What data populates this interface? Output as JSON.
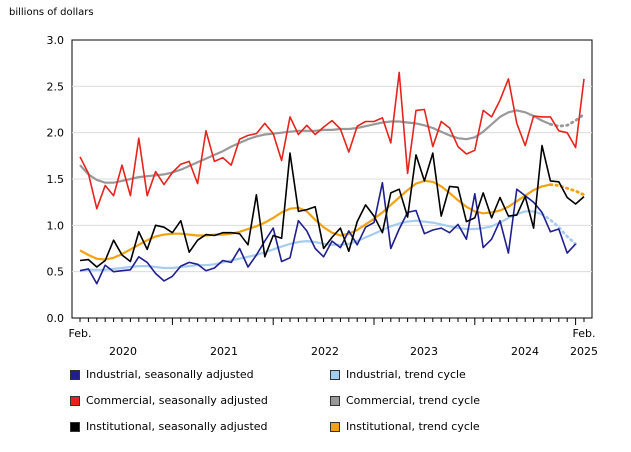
{
  "chart_data": {
    "type": "line",
    "ylabel": "billions of dollars",
    "ylim": [
      0.0,
      3.0
    ],
    "yticks": [
      "0.0",
      "0.5",
      "1.0",
      "1.5",
      "2.0",
      "2.5",
      "3.0"
    ],
    "x_start": "Feb.",
    "x_end": "Feb.",
    "year_labels": [
      "2020",
      "2021",
      "2022",
      "2023",
      "2024",
      "2025"
    ],
    "grid": true,
    "legend_position": "bottom",
    "series": [
      {
        "name": "Industrial, seasonally adjusted",
        "color": "#1f1f8f",
        "style": "solid",
        "values": [
          0.51,
          0.53,
          0.37,
          0.57,
          0.5,
          0.51,
          0.52,
          0.66,
          0.6,
          0.48,
          0.4,
          0.45,
          0.56,
          0.6,
          0.58,
          0.51,
          0.54,
          0.62,
          0.6,
          0.75,
          0.55,
          0.68,
          0.83,
          0.97,
          0.61,
          0.65,
          1.05,
          0.94,
          0.75,
          0.66,
          0.83,
          0.76,
          0.94,
          0.79,
          0.98,
          1.03,
          1.46,
          0.75,
          0.96,
          1.14,
          1.16,
          0.91,
          0.95,
          0.97,
          0.92,
          1.01,
          0.85,
          1.34,
          0.76,
          0.85,
          1.05,
          0.7,
          1.39,
          1.32,
          1.25,
          1.14,
          0.93,
          0.96,
          0.7,
          0.8
        ]
      },
      {
        "name": "Industrial, trend cycle",
        "color": "#a6ccf0",
        "style": "solid",
        "values": [
          0.51,
          0.52,
          0.52,
          0.52,
          0.53,
          0.54,
          0.55,
          0.56,
          0.56,
          0.55,
          0.54,
          0.54,
          0.55,
          0.56,
          0.57,
          0.57,
          0.58,
          0.6,
          0.62,
          0.64,
          0.66,
          0.68,
          0.71,
          0.74,
          0.77,
          0.8,
          0.82,
          0.83,
          0.82,
          0.8,
          0.79,
          0.79,
          0.8,
          0.83,
          0.87,
          0.91,
          0.95,
          0.99,
          1.02,
          1.04,
          1.05,
          1.04,
          1.03,
          1.01,
          0.99,
          0.97,
          0.96,
          0.96,
          0.97,
          0.99,
          1.03,
          1.08,
          1.12,
          1.15,
          1.15,
          1.12,
          1.06,
          0.98,
          0.88,
          0.8
        ],
        "dotted_from_index": 55
      },
      {
        "name": "Commercial, seasonally adjusted",
        "color": "#e8231c",
        "style": "solid",
        "values": [
          1.74,
          1.56,
          1.18,
          1.43,
          1.32,
          1.65,
          1.32,
          1.94,
          1.32,
          1.58,
          1.44,
          1.57,
          1.66,
          1.69,
          1.45,
          2.02,
          1.69,
          1.73,
          1.65,
          1.93,
          1.97,
          1.99,
          2.1,
          1.99,
          1.7,
          2.17,
          1.98,
          2.08,
          1.98,
          2.06,
          2.13,
          2.04,
          1.79,
          2.07,
          2.12,
          2.12,
          2.16,
          1.89,
          2.65,
          1.56,
          2.24,
          2.25,
          1.85,
          2.12,
          2.05,
          1.85,
          1.77,
          1.81,
          2.24,
          2.17,
          2.35,
          2.58,
          2.1,
          1.86,
          2.18,
          2.17,
          2.17,
          2.02,
          2.0,
          1.84,
          2.58
        ]
      },
      {
        "name": "Commercial, trend cycle",
        "color": "#999999",
        "style": "solid",
        "values": [
          1.65,
          1.55,
          1.49,
          1.46,
          1.46,
          1.48,
          1.5,
          1.52,
          1.53,
          1.54,
          1.55,
          1.57,
          1.6,
          1.64,
          1.68,
          1.72,
          1.76,
          1.8,
          1.85,
          1.89,
          1.93,
          1.96,
          1.98,
          1.99,
          2.0,
          2.01,
          2.02,
          2.02,
          2.02,
          2.03,
          2.03,
          2.04,
          2.04,
          2.05,
          2.07,
          2.09,
          2.11,
          2.12,
          2.12,
          2.11,
          2.1,
          2.08,
          2.05,
          2.01,
          1.97,
          1.94,
          1.93,
          1.95,
          2.01,
          2.09,
          2.17,
          2.22,
          2.24,
          2.22,
          2.18,
          2.13,
          2.09,
          2.07,
          2.08,
          2.13,
          2.2
        ],
        "dotted_from_index": 56
      },
      {
        "name": "Institutional, seasonally adjusted",
        "color": "#000000",
        "style": "solid",
        "values": [
          0.62,
          0.63,
          0.55,
          0.62,
          0.84,
          0.68,
          0.61,
          0.93,
          0.74,
          1.0,
          0.98,
          0.92,
          1.05,
          0.71,
          0.84,
          0.9,
          0.89,
          0.92,
          0.92,
          0.91,
          0.79,
          1.33,
          0.66,
          0.89,
          0.86,
          1.78,
          1.15,
          1.17,
          1.2,
          0.75,
          0.87,
          0.97,
          0.72,
          1.04,
          1.22,
          1.1,
          0.92,
          1.35,
          1.39,
          1.09,
          1.76,
          1.48,
          1.78,
          1.1,
          1.42,
          1.41,
          1.04,
          1.08,
          1.35,
          1.08,
          1.3,
          1.1,
          1.11,
          1.31,
          0.97,
          1.86,
          1.48,
          1.47,
          1.3,
          1.23,
          1.31
        ]
      },
      {
        "name": "Institutional, trend cycle",
        "color": "#f2a20f",
        "style": "solid",
        "values": [
          0.73,
          0.68,
          0.64,
          0.63,
          0.65,
          0.69,
          0.74,
          0.79,
          0.84,
          0.88,
          0.9,
          0.91,
          0.91,
          0.9,
          0.89,
          0.89,
          0.9,
          0.9,
          0.91,
          0.93,
          0.96,
          0.99,
          1.03,
          1.08,
          1.14,
          1.18,
          1.19,
          1.15,
          1.06,
          0.98,
          0.92,
          0.89,
          0.91,
          0.95,
          1.01,
          1.07,
          1.14,
          1.22,
          1.3,
          1.38,
          1.45,
          1.48,
          1.47,
          1.42,
          1.35,
          1.27,
          1.2,
          1.15,
          1.13,
          1.14,
          1.16,
          1.2,
          1.26,
          1.32,
          1.38,
          1.42,
          1.44,
          1.43,
          1.4,
          1.37,
          1.33
        ],
        "dotted_from_index": 56
      }
    ]
  }
}
